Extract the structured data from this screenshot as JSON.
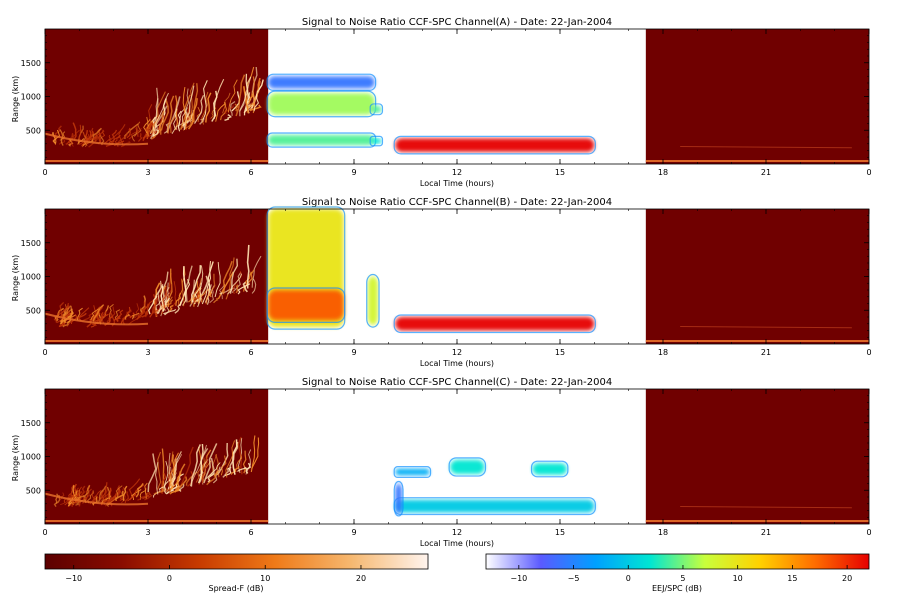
{
  "chart_data": [
    {
      "type": "heatmap",
      "title": "Signal to Noise Ratio CCF-SPC Channel(A) - Date: 22-Jan-2004",
      "xlabel": "Local Time (hours)",
      "ylabel": "Range (km)",
      "xlim": [
        0,
        24
      ],
      "ylim": [
        0,
        2000
      ],
      "x_ticks": [
        "0",
        "3",
        "6",
        "9",
        "12",
        "15",
        "18",
        "21",
        "0"
      ],
      "y_ticks": [
        "500",
        "1000",
        "1500"
      ],
      "spreadF_panels": [
        [
          0,
          6.5
        ],
        [
          17.5,
          24
        ]
      ],
      "ejj_regions": [
        {
          "x": [
            6.5,
            9.6
          ],
          "y": [
            730,
            1050
          ],
          "value": 6
        },
        {
          "x": [
            6.5,
            9.6
          ],
          "y": [
            1120,
            1300
          ],
          "value": -6
        },
        {
          "x": [
            6.5,
            9.6
          ],
          "y": [
            280,
            430
          ],
          "value": 4
        },
        {
          "x": [
            9.5,
            9.8
          ],
          "y": [
            760,
            860
          ],
          "value": 4
        },
        {
          "x": [
            9.5,
            9.8
          ],
          "y": [
            300,
            380
          ],
          "value": 2
        },
        {
          "x": [
            10.2,
            16
          ],
          "y": [
            180,
            380
          ],
          "value": 22
        }
      ]
    },
    {
      "type": "heatmap",
      "title": "Signal to Noise Ratio CCF-SPC Channel(B) - Date: 22-Jan-2004",
      "xlabel": "Local Time (hours)",
      "ylabel": "Range (km)",
      "xlim": [
        0,
        24
      ],
      "ylim": [
        0,
        2000
      ],
      "x_ticks": [
        "0",
        "3",
        "6",
        "9",
        "12",
        "15",
        "18",
        "21",
        "0"
      ],
      "y_ticks": [
        "500",
        "1000",
        "1500"
      ],
      "spreadF_panels": [
        [
          0,
          6.5
        ],
        [
          17.5,
          24
        ]
      ],
      "ejj_regions": [
        {
          "x": [
            6.5,
            8.7
          ],
          "y": [
            250,
            2000
          ],
          "value": 10
        },
        {
          "x": [
            6.5,
            8.7
          ],
          "y": [
            350,
            800
          ],
          "value": 18
        },
        {
          "x": [
            9.4,
            9.7
          ],
          "y": [
            280,
            1000
          ],
          "value": 8
        },
        {
          "x": [
            10.2,
            16
          ],
          "y": [
            200,
            400
          ],
          "value": 22
        }
      ]
    },
    {
      "type": "heatmap",
      "title": "Signal to Noise Ratio CCF-SPC Channel(C) - Date: 22-Jan-2004",
      "xlabel": "Local Time (hours)",
      "ylabel": "Range (km)",
      "xlim": [
        0,
        24
      ],
      "ylim": [
        0,
        2000
      ],
      "x_ticks": [
        "0",
        "3",
        "6",
        "9",
        "12",
        "15",
        "18",
        "21",
        "0"
      ],
      "y_ticks": [
        "500",
        "1000",
        "1500"
      ],
      "spreadF_panels": [
        [
          0,
          6.5
        ],
        [
          17.5,
          24
        ]
      ],
      "ejj_regions": [
        {
          "x": [
            10.2,
            11.2
          ],
          "y": [
            720,
            820
          ],
          "value": -2
        },
        {
          "x": [
            11.8,
            12.8
          ],
          "y": [
            740,
            950
          ],
          "value": 2
        },
        {
          "x": [
            14.2,
            15.2
          ],
          "y": [
            730,
            900
          ],
          "value": 2
        },
        {
          "x": [
            10.2,
            16
          ],
          "y": [
            170,
            360
          ],
          "value": 0
        },
        {
          "x": [
            10.2,
            10.4
          ],
          "y": [
            150,
            600
          ],
          "value": -6
        }
      ]
    }
  ],
  "colorbars": [
    {
      "label": "Spread-F (dB)",
      "ticks": [
        "−10",
        "0",
        "10",
        "20"
      ],
      "range": [
        -13,
        27
      ],
      "stops": [
        "#5c0000",
        "#8a0c00",
        "#c73a00",
        "#ef7a18",
        "#f6b870",
        "#fff4ee"
      ]
    },
    {
      "label": "EEJ/SPC (dB)",
      "ticks": [
        "−10",
        "−5",
        "0",
        "5",
        "10",
        "15",
        "20"
      ],
      "range": [
        -13,
        22
      ],
      "stops": [
        "#ffffff",
        "#5a5aff",
        "#00a0ff",
        "#00e6d2",
        "#c8ff3c",
        "#ffd200",
        "#ff6e00",
        "#e60000"
      ]
    }
  ]
}
